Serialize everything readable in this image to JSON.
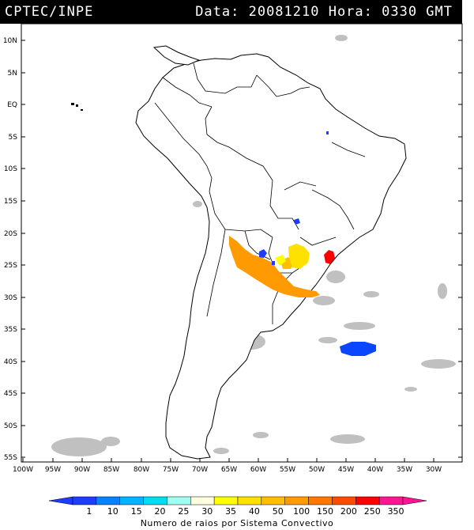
{
  "header": {
    "left": "CPTEC/INPE",
    "right": "Data: 20081210 Hora: 0330 GMT"
  },
  "lat_labels": [
    "10N",
    "5N",
    "EQ",
    "5S",
    "10S",
    "15S",
    "20S",
    "25S",
    "30S",
    "35S",
    "40S",
    "45S",
    "50S",
    "55S"
  ],
  "lon_labels": [
    "100W",
    "95W",
    "90W",
    "85W",
    "80W",
    "75W",
    "70W",
    "65W",
    "60W",
    "55W",
    "50W",
    "45W",
    "40W",
    "35W",
    "30W"
  ],
  "legend": {
    "title": "Numero de raios por Sistema Convectivo",
    "labels": [
      "1",
      "10",
      "15",
      "20",
      "25",
      "30",
      "35",
      "40",
      "50",
      "100",
      "150",
      "200",
      "250",
      "350"
    ],
    "colors": [
      "#1e3cff",
      "#0a82ff",
      "#00b4ff",
      "#00dcf0",
      "#a0fff0",
      "#ffffe0",
      "#ffff00",
      "#ffe100",
      "#ffbe00",
      "#ff9b00",
      "#ff7800",
      "#ff4b00",
      "#ff0000",
      "#ff1493"
    ]
  },
  "systems": [
    {
      "name": "orange-large",
      "color": "#ff9b00"
    },
    {
      "name": "yellow-center",
      "color": "#ffe100"
    },
    {
      "name": "red-southeast",
      "color": "#ff0000"
    },
    {
      "name": "blue-atlantic",
      "color": "#0a46ff"
    },
    {
      "name": "blue-paraguay",
      "color": "#1e3cff"
    }
  ]
}
